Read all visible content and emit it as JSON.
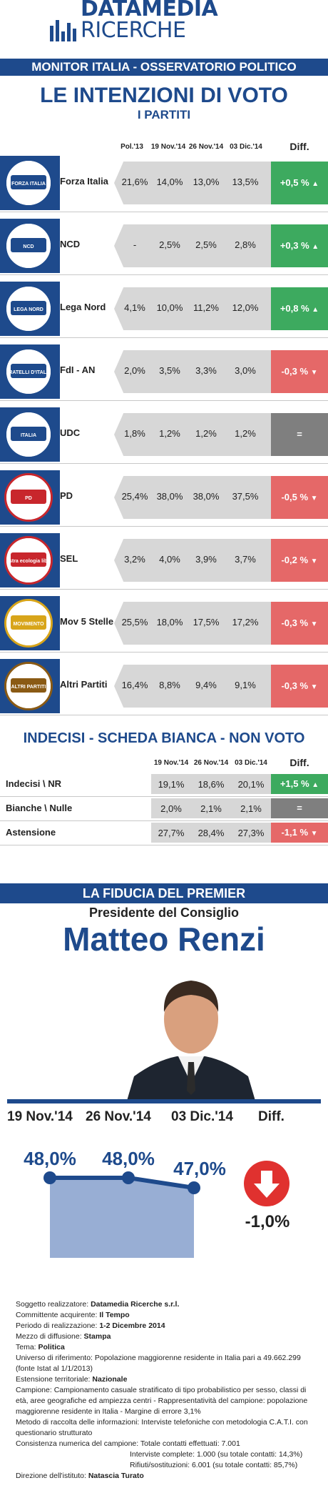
{
  "brand": {
    "name_bold": "DATAMEDIA",
    "name_light": "RICERCHE"
  },
  "header": {
    "band": "MONITOR ITALIA - OSSERVATORIO POLITICO",
    "title": "LE INTENZIONI DI VOTO",
    "subtitle": "I PARTITI"
  },
  "columns": {
    "c1": "Pol.'13",
    "c2": "19 Nov.'14",
    "c3": "26 Nov.'14",
    "c4": "03 Dic.'14",
    "diff": "Diff."
  },
  "parties": [
    {
      "name": "Forza Italia",
      "logo_text": "FORZA ITALIA",
      "v1": "21,6%",
      "v2": "14,0%",
      "v3": "13,0%",
      "v4": "13,5%",
      "diff": "+0,5 %",
      "arrow": "▲",
      "trend": "pos",
      "logo_color": "#1e4a8c"
    },
    {
      "name": "NCD",
      "logo_text": "NCD",
      "v1": "-",
      "v2": "2,5%",
      "v3": "2,5%",
      "v4": "2,8%",
      "diff": "+0,3 %",
      "arrow": "▲",
      "trend": "pos",
      "logo_color": "#1e4a8c"
    },
    {
      "name": "Lega Nord",
      "logo_text": "LEGA NORD",
      "v1": "4,1%",
      "v2": "10,0%",
      "v3": "11,2%",
      "v4": "12,0%",
      "diff": "+0,8 %",
      "arrow": "▲",
      "trend": "pos",
      "logo_color": "#1e4a8c"
    },
    {
      "name": "FdI - AN",
      "logo_text": "FRATELLI D'ITALIA",
      "v1": "2,0%",
      "v2": "3,5%",
      "v3": "3,3%",
      "v4": "3,0%",
      "diff": "-0,3 %",
      "arrow": "▼",
      "trend": "neg",
      "logo_color": "#1e4a8c"
    },
    {
      "name": "UDC",
      "logo_text": "ITALIA",
      "v1": "1,8%",
      "v2": "1,2%",
      "v3": "1,2%",
      "v4": "1,2%",
      "diff": "=",
      "arrow": "",
      "trend": "eq",
      "logo_color": "#1e4a8c"
    },
    {
      "name": "PD",
      "logo_text": "PD",
      "v1": "25,4%",
      "v2": "38,0%",
      "v3": "38,0%",
      "v4": "37,5%",
      "diff": "-0,5 %",
      "arrow": "▼",
      "trend": "neg",
      "logo_color": "#c8262c"
    },
    {
      "name": "SEL",
      "logo_text": "sinistra ecologia libertà",
      "v1": "3,2%",
      "v2": "4,0%",
      "v3": "3,9%",
      "v4": "3,7%",
      "diff": "-0,2 %",
      "arrow": "▼",
      "trend": "neg",
      "logo_color": "#c8262c"
    },
    {
      "name": "Mov 5 Stelle",
      "logo_text": "MOVIMENTO",
      "v1": "25,5%",
      "v2": "18,0%",
      "v3": "17,5%",
      "v4": "17,2%",
      "diff": "-0,3 %",
      "arrow": "▼",
      "trend": "neg",
      "logo_color": "#d8a51a"
    },
    {
      "name": "Altri Partiti",
      "logo_text": "ALTRI PARTITI",
      "v1": "16,4%",
      "v2": "8,8%",
      "v3": "9,4%",
      "v4": "9,1%",
      "diff": "-0,3 %",
      "arrow": "▼",
      "trend": "neg",
      "logo_color": "#8a5a14"
    }
  ],
  "indecisi": {
    "title": "INDECISI - SCHEDA BIANCA - NON VOTO",
    "columns": {
      "c2": "19 Nov.'14",
      "c3": "26 Nov.'14",
      "c4": "03 Dic.'14",
      "diff": "Diff."
    },
    "rows": [
      {
        "name": "Indecisi \\ NR",
        "v2": "19,1%",
        "v3": "18,6%",
        "v4": "20,1%",
        "diff": "+1,5 %",
        "arrow": "▲",
        "trend": "pos"
      },
      {
        "name": "Bianche \\ Nulle",
        "v2": "2,0%",
        "v3": "2,1%",
        "v4": "2,1%",
        "diff": "=",
        "arrow": "",
        "trend": "eq"
      },
      {
        "name": "Astensione",
        "v2": "27,7%",
        "v3": "28,4%",
        "v4": "27,3%",
        "diff": "-1,1 %",
        "arrow": "▼",
        "trend": "neg"
      }
    ]
  },
  "premier": {
    "band": "LA FIDUCIA DEL PREMIER",
    "role": "Presidente del Consiglio",
    "name": "Matteo Renzi",
    "cols": [
      "19 Nov.'14",
      "26 Nov.'14",
      "03 Dic.'14",
      "Diff."
    ],
    "diff_value": "-1,0%"
  },
  "chart_data": {
    "type": "area",
    "categories": [
      "19 Nov.'14",
      "26 Nov.'14",
      "03 Dic.'14"
    ],
    "values": [
      48.0,
      48.0,
      47.0
    ],
    "labels": [
      "48,0%",
      "48,0%",
      "47,0%"
    ],
    "title": "LA FIDUCIA DEL PREMIER",
    "subtitle": "Matteo Renzi",
    "color": "#98aed4"
  },
  "footer": [
    {
      "label": "Soggetto realizzatore: ",
      "value": "Datamedia Ricerche s.r.l."
    },
    {
      "label": "Committente acquirente: ",
      "value": "Il Tempo"
    },
    {
      "label": "Periodo di realizzazione: ",
      "value": "1-2 Dicembre 2014"
    },
    {
      "label": "Mezzo di diffusione: ",
      "value": "Stampa"
    },
    {
      "label": "Tema: ",
      "value": "Politica"
    },
    {
      "label": "Universo di riferimento: Popolazione maggiorenne residente in Italia pari a 49.662.299 (fonte Istat al 1/1/2013)",
      "value": ""
    },
    {
      "label": "Estensione territoriale: ",
      "value": "Nazionale"
    },
    {
      "label": "Campione: Campionamento casuale stratificato di tipo probabilistico per sesso, classi di età, aree geografiche ed ampiezza centri - Rappresentatività del campione: popolazione maggiorenne residente in Italia - Margine di errore 3,1%",
      "value": ""
    },
    {
      "label": "Metodo di raccolta delle informazioni: Interviste telefoniche con metodologia C.A.T.I. con questionario strutturato",
      "value": ""
    },
    {
      "label": "Consistenza numerica del campione: Totale contatti effettuati: 7.001",
      "value": ""
    },
    {
      "label": "Interviste complete: 1.000 (su totale contatti: 14,3%)",
      "value": ""
    },
    {
      "label": "Rifiuti/sostituzioni: 6.001 (su totale contatti: 85,7%)",
      "value": ""
    },
    {
      "label": "Direzione dell'istituto: ",
      "value": "Natascia Turato"
    }
  ]
}
